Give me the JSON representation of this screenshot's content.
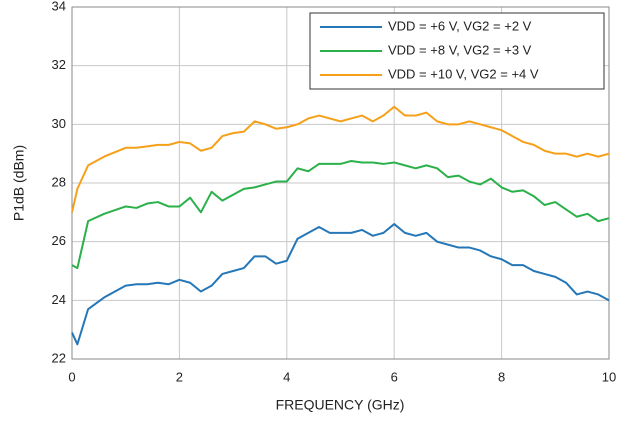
{
  "chart_data": {
    "type": "line",
    "x_label": "FREQUENCY (GHz)",
    "y_label": "P1dB (dBm)",
    "x": [
      0,
      0.1,
      0.3,
      0.6,
      1.0,
      1.2,
      1.4,
      1.6,
      1.8,
      2.0,
      2.2,
      2.4,
      2.6,
      2.8,
      3.0,
      3.2,
      3.4,
      3.6,
      3.8,
      4.0,
      4.2,
      4.4,
      4.6,
      4.8,
      5.0,
      5.2,
      5.4,
      5.6,
      5.8,
      6.0,
      6.2,
      6.4,
      6.6,
      6.8,
      7.0,
      7.2,
      7.4,
      7.6,
      7.8,
      8.0,
      8.2,
      8.4,
      8.6,
      8.8,
      9.0,
      9.2,
      9.4,
      9.6,
      9.8,
      10.0
    ],
    "series": [
      {
        "name": "VDD = +6 V, VG2 = +2 V",
        "color": "#2577b7",
        "values": [
          22.9,
          22.5,
          23.7,
          24.1,
          24.5,
          24.55,
          24.55,
          24.6,
          24.55,
          24.7,
          24.6,
          24.3,
          24.5,
          24.9,
          25.0,
          25.1,
          25.5,
          25.5,
          25.25,
          25.35,
          26.1,
          26.3,
          26.5,
          26.3,
          26.3,
          26.3,
          26.4,
          26.2,
          26.3,
          26.6,
          26.3,
          26.2,
          26.3,
          26.0,
          25.9,
          25.8,
          25.8,
          25.7,
          25.5,
          25.4,
          25.2,
          25.2,
          25.0,
          24.9,
          24.8,
          24.6,
          24.2,
          24.3,
          24.2,
          24.0
        ]
      },
      {
        "name": "VDD = +8 V, VG2 = +3 V",
        "color": "#2bb04a",
        "values": [
          25.2,
          25.1,
          26.7,
          26.95,
          27.2,
          27.15,
          27.3,
          27.35,
          27.2,
          27.2,
          27.5,
          27.0,
          27.7,
          27.4,
          27.6,
          27.8,
          27.85,
          27.95,
          28.05,
          28.05,
          28.5,
          28.4,
          28.65,
          28.65,
          28.65,
          28.75,
          28.7,
          28.7,
          28.65,
          28.7,
          28.6,
          28.5,
          28.6,
          28.5,
          28.2,
          28.25,
          28.05,
          27.95,
          28.15,
          27.85,
          27.7,
          27.75,
          27.55,
          27.25,
          27.35,
          27.1,
          26.85,
          26.95,
          26.7,
          26.8
        ]
      },
      {
        "name": "VDD = +10 V, VG2 = +4 V",
        "color": "#f6a01a",
        "values": [
          27.0,
          27.8,
          28.6,
          28.9,
          29.2,
          29.2,
          29.25,
          29.3,
          29.3,
          29.4,
          29.35,
          29.1,
          29.2,
          29.6,
          29.7,
          29.75,
          30.1,
          30.0,
          29.85,
          29.9,
          30.0,
          30.2,
          30.3,
          30.2,
          30.1,
          30.2,
          30.3,
          30.1,
          30.3,
          30.6,
          30.3,
          30.3,
          30.4,
          30.1,
          30.0,
          30.0,
          30.1,
          30.0,
          29.9,
          29.8,
          29.6,
          29.4,
          29.3,
          29.1,
          29.0,
          29.0,
          28.9,
          29.0,
          28.9,
          29.0
        ]
      }
    ],
    "xlim": [
      0,
      10
    ],
    "xticks": [
      0,
      2,
      4,
      6,
      8,
      10
    ],
    "ylim": [
      22,
      34
    ],
    "yticks": [
      22,
      24,
      26,
      28,
      30,
      32,
      34
    ],
    "grid": true,
    "legend": "upper right"
  }
}
